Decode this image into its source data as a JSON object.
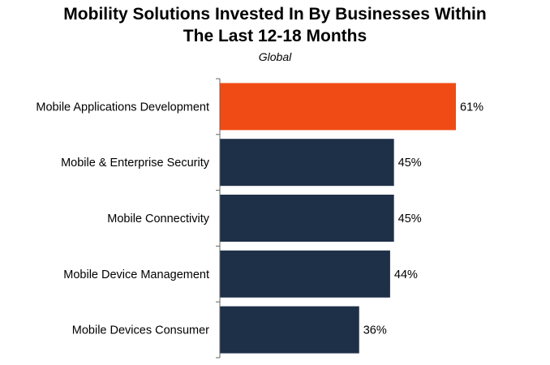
{
  "chart_data": {
    "type": "bar",
    "orientation": "horizontal",
    "title": "Mobility Solutions Invested In By Businesses Within The Last 12-18 Months",
    "title_lines": [
      "Mobility Solutions Invested In By Businesses Within",
      "The Last 12-18 Months"
    ],
    "subtitle": "Global",
    "categories": [
      "Mobile Applications Development",
      "Mobile & Enterprise Security",
      "Mobile Connectivity",
      "Mobile Device Management",
      "Mobile Devices Consumer"
    ],
    "values": [
      61,
      45,
      45,
      44,
      36
    ],
    "value_labels": [
      "61%",
      "45%",
      "45%",
      "44%",
      "36%"
    ],
    "colors": [
      "#f04b15",
      "#1e3048",
      "#1e3048",
      "#1e3048",
      "#1e3048"
    ],
    "axis_color": "#666666",
    "xlim": [
      0,
      62
    ],
    "xlabel": "",
    "ylabel": "",
    "grid": false,
    "legend": "none"
  }
}
